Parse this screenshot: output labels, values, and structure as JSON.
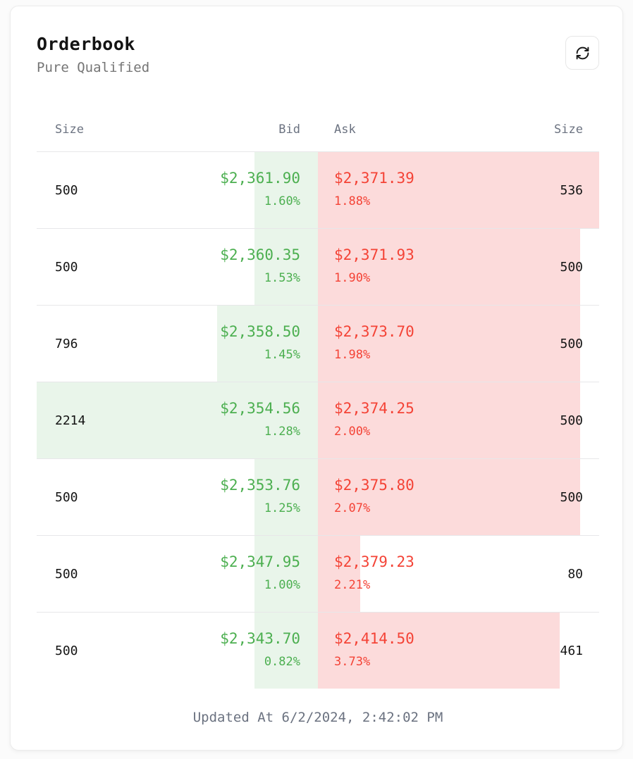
{
  "card": {
    "title": "Orderbook",
    "subtitle": "Pure Qualified",
    "footer": "Updated At 6/2/2024, 2:42:02 PM"
  },
  "toolbar": {
    "refresh_icon": "refresh-circular-arrows"
  },
  "table": {
    "headers": {
      "bid_size": "Size",
      "bid": "Bid",
      "ask": "Ask",
      "ask_size": "Size"
    },
    "rows": [
      {
        "bid_size": "500",
        "bid_price": "$2,361.90",
        "bid_pct": "1.60%",
        "ask_price": "$2,371.39",
        "ask_pct": "1.88%",
        "ask_size": "536"
      },
      {
        "bid_size": "500",
        "bid_price": "$2,360.35",
        "bid_pct": "1.53%",
        "ask_price": "$2,371.93",
        "ask_pct": "1.90%",
        "ask_size": "500"
      },
      {
        "bid_size": "796",
        "bid_price": "$2,358.50",
        "bid_pct": "1.45%",
        "ask_price": "$2,373.70",
        "ask_pct": "1.98%",
        "ask_size": "500"
      },
      {
        "bid_size": "2214",
        "bid_price": "$2,354.56",
        "bid_pct": "1.28%",
        "ask_price": "$2,374.25",
        "ask_pct": "2.00%",
        "ask_size": "500"
      },
      {
        "bid_size": "500",
        "bid_price": "$2,353.76",
        "bid_pct": "1.25%",
        "ask_price": "$2,375.80",
        "ask_pct": "2.07%",
        "ask_size": "500"
      },
      {
        "bid_size": "500",
        "bid_price": "$2,347.95",
        "bid_pct": "1.00%",
        "ask_price": "$2,379.23",
        "ask_pct": "2.21%",
        "ask_size": "80"
      },
      {
        "bid_size": "500",
        "bid_price": "$2,343.70",
        "bid_pct": "0.82%",
        "ask_price": "$2,414.50",
        "ask_pct": "3.73%",
        "ask_size": "461"
      }
    ]
  },
  "colors": {
    "bid_text": "#4caf50",
    "ask_text": "#f44336",
    "bid_bg": "#e9f5ea",
    "ask_bg": "#fcdbdb",
    "heading": "#141414",
    "muted": "#6b7280",
    "subtitle": "#757575",
    "divider": "#e7e7e9",
    "card_border": "#ececec"
  }
}
